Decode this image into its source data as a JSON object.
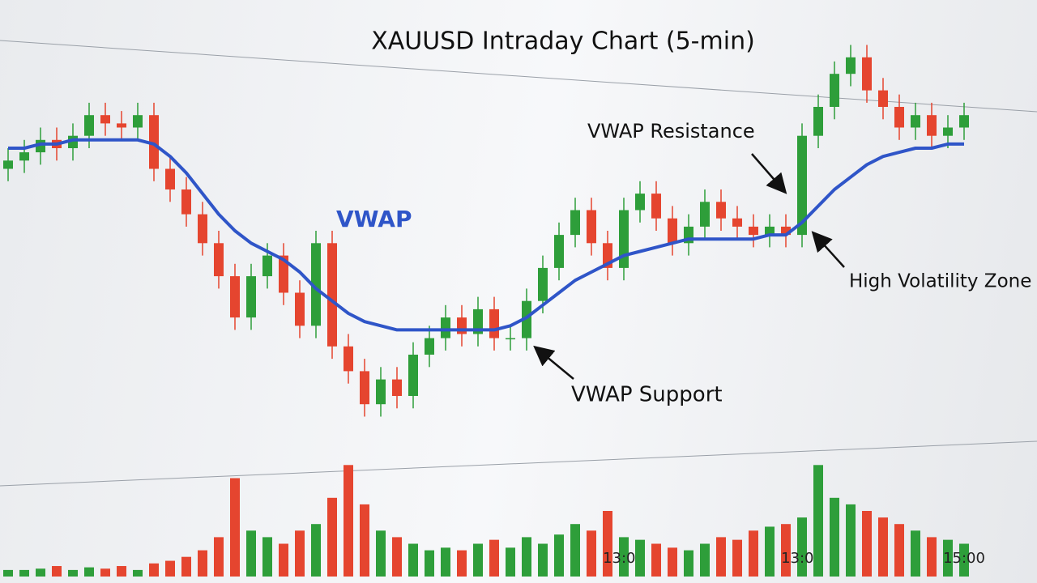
{
  "chart_data": {
    "type": "candlestick",
    "title": "XAUUSD Intraday Chart (5-min)",
    "categories": [
      null,
      null,
      null,
      null,
      null,
      null,
      null,
      null,
      null,
      null,
      null,
      null,
      null,
      null,
      null,
      null,
      null,
      null,
      null,
      null,
      null,
      null,
      null,
      null,
      null,
      null,
      null,
      null,
      null,
      null,
      null,
      null,
      null,
      null,
      null,
      null,
      null,
      null,
      "13:00",
      null,
      null,
      null,
      null,
      null,
      null,
      null,
      null,
      null,
      null,
      "13:00",
      null,
      null,
      null,
      null,
      null,
      null,
      null,
      null,
      null,
      "15:00"
    ],
    "open": [
      65,
      67,
      69,
      72,
      70,
      73,
      78,
      76,
      75,
      78,
      65,
      60,
      54,
      47,
      39,
      29,
      39,
      44,
      35,
      27,
      47,
      22,
      16,
      8,
      14,
      10,
      20,
      24,
      29,
      25,
      31,
      24,
      24,
      33,
      41,
      49,
      55,
      47,
      41,
      55,
      59,
      53,
      47,
      51,
      57,
      53,
      51,
      49,
      51,
      49,
      73,
      80,
      88,
      92,
      84,
      80,
      75,
      78,
      73,
      75
    ],
    "high": [
      70,
      72,
      75,
      75,
      76,
      81,
      81,
      79,
      81,
      81,
      68,
      63,
      57,
      50,
      42,
      42,
      47,
      47,
      38,
      50,
      50,
      25,
      19,
      17,
      17,
      23,
      27,
      32,
      32,
      34,
      34,
      27,
      36,
      44,
      52,
      58,
      58,
      50,
      58,
      62,
      62,
      56,
      54,
      60,
      60,
      56,
      54,
      54,
      54,
      76,
      83,
      91,
      95,
      95,
      87,
      83,
      81,
      81,
      78,
      81
    ],
    "low": [
      62,
      64,
      66,
      67,
      67,
      70,
      73,
      72,
      72,
      62,
      57,
      51,
      44,
      36,
      26,
      26,
      36,
      32,
      24,
      24,
      19,
      13,
      5,
      5,
      7,
      7,
      17,
      21,
      22,
      22,
      21,
      21,
      21,
      30,
      38,
      46,
      44,
      38,
      38,
      52,
      50,
      44,
      44,
      48,
      50,
      48,
      46,
      46,
      46,
      46,
      70,
      77,
      85,
      81,
      77,
      72,
      72,
      70,
      70,
      72
    ],
    "close": [
      67,
      69,
      72,
      70,
      73,
      78,
      76,
      75,
      78,
      65,
      60,
      54,
      47,
      39,
      29,
      39,
      44,
      35,
      27,
      47,
      22,
      16,
      8,
      14,
      10,
      20,
      24,
      29,
      25,
      31,
      24,
      24,
      33,
      41,
      49,
      55,
      47,
      41,
      55,
      59,
      53,
      47,
      51,
      57,
      53,
      51,
      49,
      51,
      49,
      73,
      80,
      88,
      92,
      84,
      80,
      75,
      78,
      73,
      75,
      78
    ],
    "ylim": [
      0,
      100
    ],
    "vwap": {
      "name": "VWAP",
      "color": "#2f55c8",
      "values": [
        70,
        70,
        71,
        71,
        72,
        72,
        72,
        72,
        72,
        71,
        68,
        64,
        59,
        54,
        50,
        47,
        45,
        43,
        40,
        36,
        33,
        30,
        28,
        27,
        26,
        26,
        26,
        26,
        26,
        26,
        26,
        27,
        29,
        32,
        35,
        38,
        40,
        42,
        44,
        45,
        46,
        47,
        48,
        48,
        48,
        48,
        48,
        49,
        49,
        52,
        56,
        60,
        63,
        66,
        68,
        69,
        70,
        70,
        71,
        71
      ]
    },
    "volume": {
      "values": [
        5,
        5,
        6,
        8,
        5,
        7,
        6,
        8,
        5,
        10,
        12,
        15,
        20,
        30,
        75,
        35,
        30,
        25,
        35,
        40,
        60,
        85,
        55,
        35,
        30,
        25,
        20,
        22,
        20,
        25,
        28,
        22,
        30,
        25,
        32,
        40,
        35,
        50,
        30,
        28,
        25,
        22,
        20,
        25,
        30,
        28,
        35,
        38,
        40,
        45,
        85,
        60,
        55,
        50,
        45,
        40,
        35,
        30,
        28,
        25
      ],
      "ylim": [
        0,
        100
      ]
    },
    "up_color": "#2e9e3a",
    "down_color": "#e5452f",
    "annotations": [
      {
        "text": "VWAP"
      },
      {
        "text": "VWAP Resistance"
      },
      {
        "text": "VWAP Support"
      },
      {
        "text": "High Volatility Zone"
      }
    ]
  }
}
